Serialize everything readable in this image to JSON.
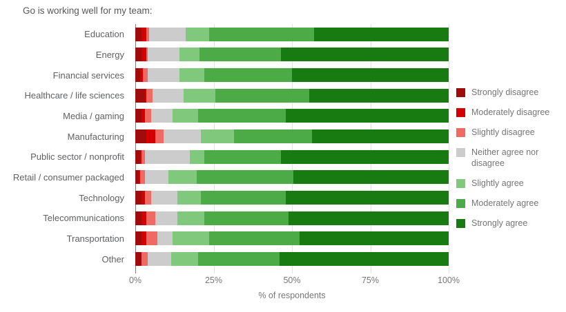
{
  "title": "Go is working well for my team:",
  "chart_data": {
    "type": "bar",
    "orientation": "horizontal",
    "stacked": true,
    "title": "Go is working well for my team:",
    "xlabel": "% of respondents",
    "ylabel": "",
    "xlim": [
      0,
      100
    ],
    "grid": true,
    "legend_position": "right",
    "x_tick_values": [
      0,
      25,
      50,
      75,
      100
    ],
    "x_tick_labels": [
      "0%",
      "25%",
      "50%",
      "75%",
      "100%"
    ],
    "categories": [
      "Education",
      "Energy",
      "Financial services",
      "Healthcare / life sciences",
      "Media / gaming",
      "Manufacturing",
      "Public sector / nonprofit",
      "Retail / consumer packaged",
      "Technology",
      "Telecommunications",
      "Transportation",
      "Other"
    ],
    "series": [
      {
        "name": "Strongly disagree",
        "color": "#9e0c0c",
        "values": [
          2,
          2,
          1.5,
          3,
          2,
          3.5,
          1.5,
          1,
          2,
          2,
          2,
          2
        ]
      },
      {
        "name": "Moderately disagree",
        "color": "#d40000",
        "values": [
          1.5,
          1.5,
          1,
          0.5,
          1,
          3,
          0.5,
          0.5,
          1,
          1.5,
          1.5,
          0
        ]
      },
      {
        "name": "Slightly disagree",
        "color": "#ee6a63",
        "values": [
          1,
          0.5,
          1.5,
          2,
          2,
          2.5,
          1,
          1.5,
          2,
          3,
          3.5,
          2
        ]
      },
      {
        "name": "Neither agree nor disagree",
        "color": "#cccccc",
        "values": [
          11.5,
          10,
          10,
          10,
          7,
          12,
          14.5,
          7.5,
          8.5,
          7,
          5,
          7.5
        ]
      },
      {
        "name": "Slightly agree",
        "color": "#80c87c",
        "values": [
          7.5,
          6.5,
          8,
          10,
          8,
          10.5,
          4.5,
          9,
          7.5,
          8.5,
          11.5,
          8.5
        ]
      },
      {
        "name": "Moderately agree",
        "color": "#4dab47",
        "values": [
          33.5,
          26,
          28,
          30,
          28,
          25,
          24.5,
          31,
          27,
          27,
          29,
          26
        ]
      },
      {
        "name": "Strongly agree",
        "color": "#177b12",
        "values": [
          43,
          53.5,
          50,
          44.5,
          52,
          43.5,
          53.5,
          49.5,
          52,
          51,
          47.5,
          54
        ]
      }
    ]
  },
  "legend": {
    "items": [
      {
        "label": "Strongly disagree"
      },
      {
        "label": "Moderately disagree"
      },
      {
        "label": "Slightly disagree"
      },
      {
        "label": "Neither agree nor disagree"
      },
      {
        "label": "Slightly agree"
      },
      {
        "label": "Moderately agree"
      },
      {
        "label": "Strongly agree"
      }
    ]
  },
  "axis": {
    "x_title": "% of respondents"
  }
}
